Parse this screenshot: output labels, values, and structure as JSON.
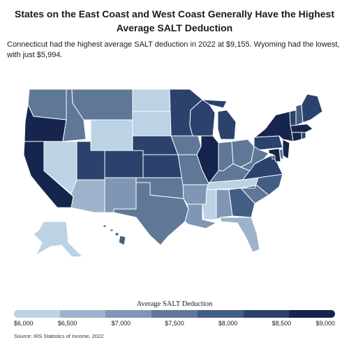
{
  "title": "States on the East Coast and West Coast Generally Have the Highest Average SALT Deduction",
  "subtitle": "Connecticut had the highest average SALT deduction in 2022 at $9,155. Wyoming had the lowest, with just $5,994.",
  "legend": {
    "title": "Average SALT Deduction",
    "ticks": [
      "$6,000",
      "$6,500",
      "$7,000",
      "$7,500",
      "$8,000",
      "$8,500",
      "$9,000"
    ],
    "colors": [
      "#bcd2e5",
      "#9db3cb",
      "#7f97b4",
      "#5f7897",
      "#435e84",
      "#2b426c",
      "#15254d"
    ]
  },
  "source": "Source: IRS Statistics of Income, 2022",
  "states": {
    "WA": {
      "name": "Washington",
      "color": "#5f7897"
    },
    "OR": {
      "name": "Oregon",
      "color": "#15254d"
    },
    "CA": {
      "name": "California",
      "color": "#15254d"
    },
    "ID": {
      "name": "Idaho",
      "color": "#5f7897"
    },
    "NV": {
      "name": "Nevada",
      "color": "#bcd2e5"
    },
    "MT": {
      "name": "Montana",
      "color": "#5f7897"
    },
    "WY": {
      "name": "Wyoming",
      "color": "#bcd2e5"
    },
    "UT": {
      "name": "Utah",
      "color": "#2b426c"
    },
    "AZ": {
      "name": "Arizona",
      "color": "#9db3cb"
    },
    "CO": {
      "name": "Colorado",
      "color": "#2b426c"
    },
    "NM": {
      "name": "New Mexico",
      "color": "#7f97b4"
    },
    "ND": {
      "name": "North Dakota",
      "color": "#bcd2e5"
    },
    "SD": {
      "name": "South Dakota",
      "color": "#bcd2e5"
    },
    "NE": {
      "name": "Nebraska",
      "color": "#2b426c"
    },
    "KS": {
      "name": "Kansas",
      "color": "#2b426c"
    },
    "OK": {
      "name": "Oklahoma",
      "color": "#5f7897"
    },
    "TX": {
      "name": "Texas",
      "color": "#5f7897"
    },
    "MN": {
      "name": "Minnesota",
      "color": "#2b426c"
    },
    "IA": {
      "name": "Iowa",
      "color": "#5f7897"
    },
    "MO": {
      "name": "Missouri",
      "color": "#5f7897"
    },
    "AR": {
      "name": "Arkansas",
      "color": "#7f97b4"
    },
    "LA": {
      "name": "Louisiana",
      "color": "#7f97b4"
    },
    "WI": {
      "name": "Wisconsin",
      "color": "#2b426c"
    },
    "IL": {
      "name": "Illinois",
      "color": "#15254d"
    },
    "MI": {
      "name": "Michigan",
      "color": "#2b426c"
    },
    "IN": {
      "name": "Indiana",
      "color": "#5f7897"
    },
    "OH": {
      "name": "Ohio",
      "color": "#5f7897"
    },
    "KY": {
      "name": "Kentucky",
      "color": "#5f7897"
    },
    "TN": {
      "name": "Tennessee",
      "color": "#bcd2e5"
    },
    "MS": {
      "name": "Mississippi",
      "color": "#bcd2e5"
    },
    "AL": {
      "name": "Alabama",
      "color": "#7f97b4"
    },
    "GA": {
      "name": "Georgia",
      "color": "#435e84"
    },
    "FL": {
      "name": "Florida",
      "color": "#9db3cb"
    },
    "SC": {
      "name": "South Carolina",
      "color": "#5f7897"
    },
    "NC": {
      "name": "North Carolina",
      "color": "#435e84"
    },
    "VA": {
      "name": "Virginia",
      "color": "#2b426c"
    },
    "WV": {
      "name": "West Virginia",
      "color": "#5f7897"
    },
    "PA": {
      "name": "Pennsylvania",
      "color": "#2b426c"
    },
    "NY": {
      "name": "New York",
      "color": "#15254d"
    },
    "NJ": {
      "name": "New Jersey",
      "color": "#15254d"
    },
    "DE": {
      "name": "Delaware",
      "color": "#5f7897"
    },
    "MD": {
      "name": "Maryland",
      "color": "#15254d"
    },
    "DC": {
      "name": "District of Columbia",
      "color": "#15254d"
    },
    "CT": {
      "name": "Connecticut",
      "color": "#15254d"
    },
    "RI": {
      "name": "Rhode Island",
      "color": "#2b426c"
    },
    "MA": {
      "name": "Massachusetts",
      "color": "#15254d"
    },
    "VT": {
      "name": "Vermont",
      "color": "#2b426c"
    },
    "NH": {
      "name": "New Hampshire",
      "color": "#435e84"
    },
    "ME": {
      "name": "Maine",
      "color": "#2b426c"
    },
    "AK": {
      "name": "Alaska",
      "color": "#bcd2e5"
    },
    "HI": {
      "name": "Hawaii",
      "color": "#435e84"
    }
  }
}
